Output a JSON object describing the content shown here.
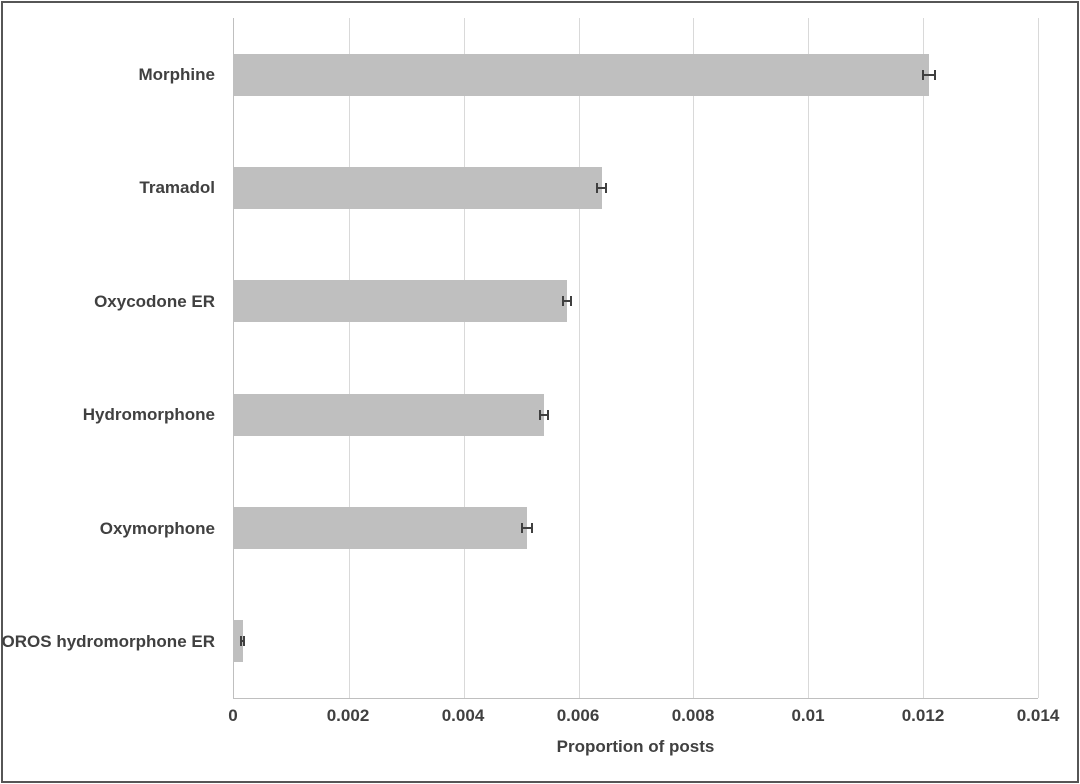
{
  "figure": {
    "border_color": "#565656",
    "background": "#ffffff"
  },
  "chart_data": {
    "type": "bar",
    "orientation": "horizontal",
    "title": "",
    "xlabel": "Proportion of posts",
    "ylabel": "",
    "categories": [
      "Morphine",
      "Tramadol",
      "Oxycodone ER",
      "Hydromorphone",
      "Oxymorphone",
      "OROS hydromorphone ER"
    ],
    "values": [
      0.0121,
      0.0064,
      0.0058,
      0.0054,
      0.0051,
      0.00015
    ],
    "error_bars": [
      0.00012,
      0.0001,
      8e-05,
      9e-05,
      0.0001,
      4e-05
    ],
    "xlim": [
      0,
      0.014
    ],
    "x_ticks": [
      0,
      0.002,
      0.004,
      0.006,
      0.008,
      0.01,
      0.012,
      0.014
    ],
    "x_tick_labels": [
      "0",
      "0.002",
      "0.004",
      "0.006",
      "0.008",
      "0.01",
      "0.012",
      "0.014"
    ],
    "grid": "vertical",
    "legend": "none",
    "bar_color": "#bfbfbf",
    "gridline_color": "#d9d9d9",
    "axis_line_color": "#bfbfbf",
    "error_bar_color": "#404040",
    "text_color": "#404040"
  }
}
